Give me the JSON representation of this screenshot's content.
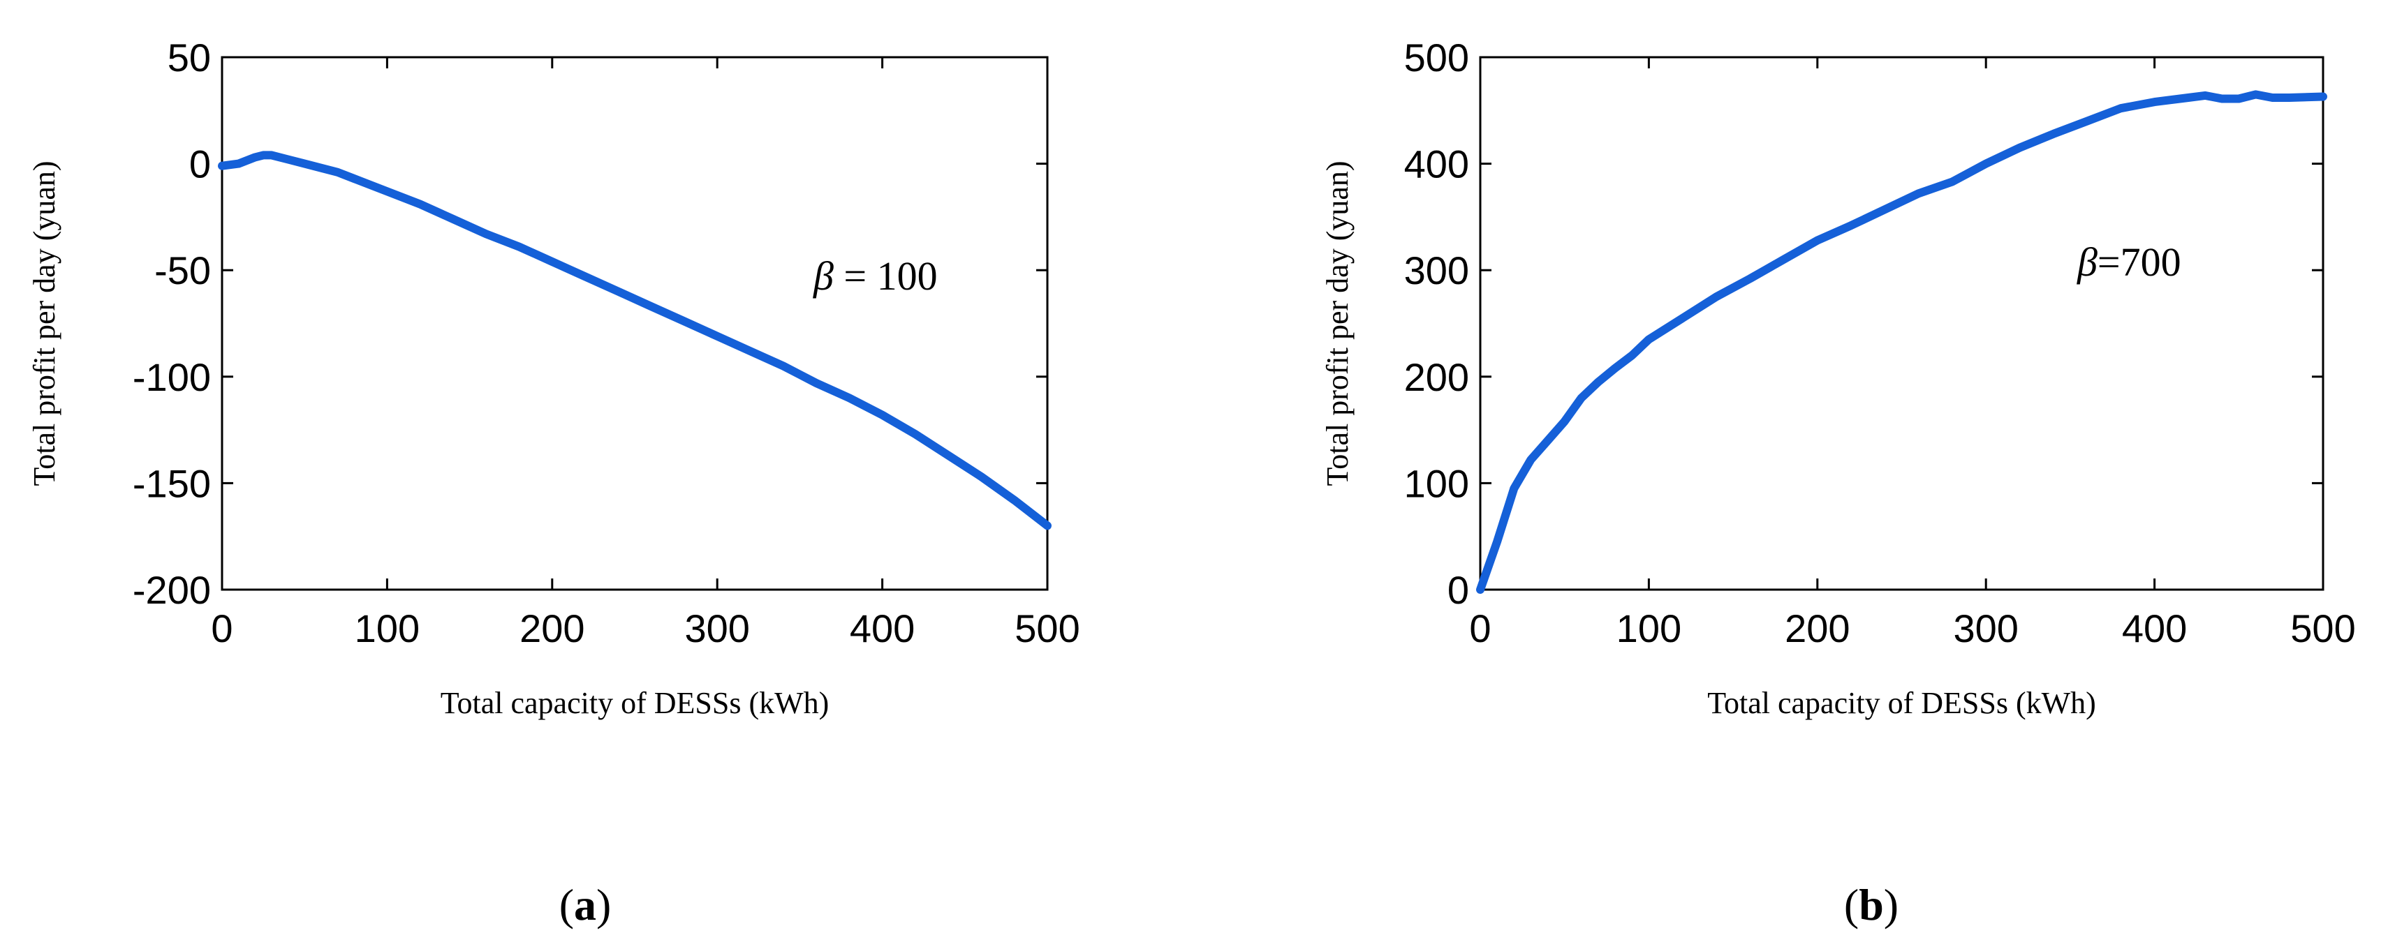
{
  "figure": {
    "colors": {
      "series": "#1560d8",
      "axis": "#000000",
      "background": "#ffffff"
    }
  },
  "chart_data": [
    {
      "type": "line",
      "panel": "a",
      "caption_open": "(",
      "caption_letter": "a",
      "caption_close": ")",
      "xlabel": "Total capacity of DESSs (kWh)",
      "ylabel": "Total profit per day (yuan)",
      "annotation_symbol": "β",
      "annotation_text": " = 100",
      "xlim": [
        0,
        500
      ],
      "ylim": [
        -200,
        50
      ],
      "xticks": [
        0,
        100,
        200,
        300,
        400,
        500
      ],
      "yticks": [
        -200,
        -150,
        -100,
        -50,
        0,
        50
      ],
      "xtick_labels": [
        "0",
        "100",
        "200",
        "300",
        "400",
        "500"
      ],
      "ytick_labels": [
        "-200",
        "-150",
        "-100",
        "-50",
        "0",
        "50"
      ],
      "series": [
        {
          "name": "profit",
          "x": [
            0,
            10,
            20,
            25,
            30,
            40,
            50,
            60,
            70,
            80,
            100,
            120,
            140,
            160,
            180,
            200,
            220,
            240,
            260,
            280,
            300,
            320,
            340,
            360,
            380,
            400,
            420,
            440,
            460,
            480,
            500
          ],
          "y": [
            -1,
            0,
            3,
            4,
            4,
            2,
            0,
            -2,
            -4,
            -7,
            -13,
            -19,
            -26,
            -33,
            -39,
            -46,
            -53,
            -60,
            -67,
            -74,
            -81,
            -88,
            -95,
            -103,
            -110,
            -118,
            -127,
            -137,
            -147,
            -158,
            -170
          ]
        }
      ]
    },
    {
      "type": "line",
      "panel": "b",
      "caption_open": "(",
      "caption_letter": "b",
      "caption_close": ")",
      "xlabel": "Total capacity of DESSs (kWh)",
      "ylabel": "Total profit per day (yuan)",
      "annotation_symbol": "β",
      "annotation_text": "=700",
      "xlim": [
        0,
        500
      ],
      "ylim": [
        0,
        500
      ],
      "xticks": [
        0,
        100,
        200,
        300,
        400,
        500
      ],
      "yticks": [
        0,
        100,
        200,
        300,
        400,
        500
      ],
      "xtick_labels": [
        "0",
        "100",
        "200",
        "300",
        "400",
        "500"
      ],
      "ytick_labels": [
        "0",
        "100",
        "200",
        "300",
        "400",
        "500"
      ],
      "series": [
        {
          "name": "profit",
          "x": [
            0,
            10,
            20,
            30,
            40,
            50,
            60,
            70,
            80,
            90,
            100,
            120,
            140,
            160,
            180,
            200,
            220,
            240,
            260,
            280,
            300,
            320,
            340,
            360,
            380,
            400,
            420,
            430,
            440,
            450,
            460,
            470,
            480,
            500
          ],
          "y": [
            0,
            45,
            95,
            122,
            140,
            158,
            180,
            195,
            208,
            220,
            235,
            255,
            275,
            292,
            310,
            328,
            342,
            357,
            372,
            383,
            400,
            415,
            428,
            440,
            452,
            458,
            462,
            464,
            461,
            461,
            465,
            462,
            462,
            463
          ]
        }
      ]
    }
  ]
}
